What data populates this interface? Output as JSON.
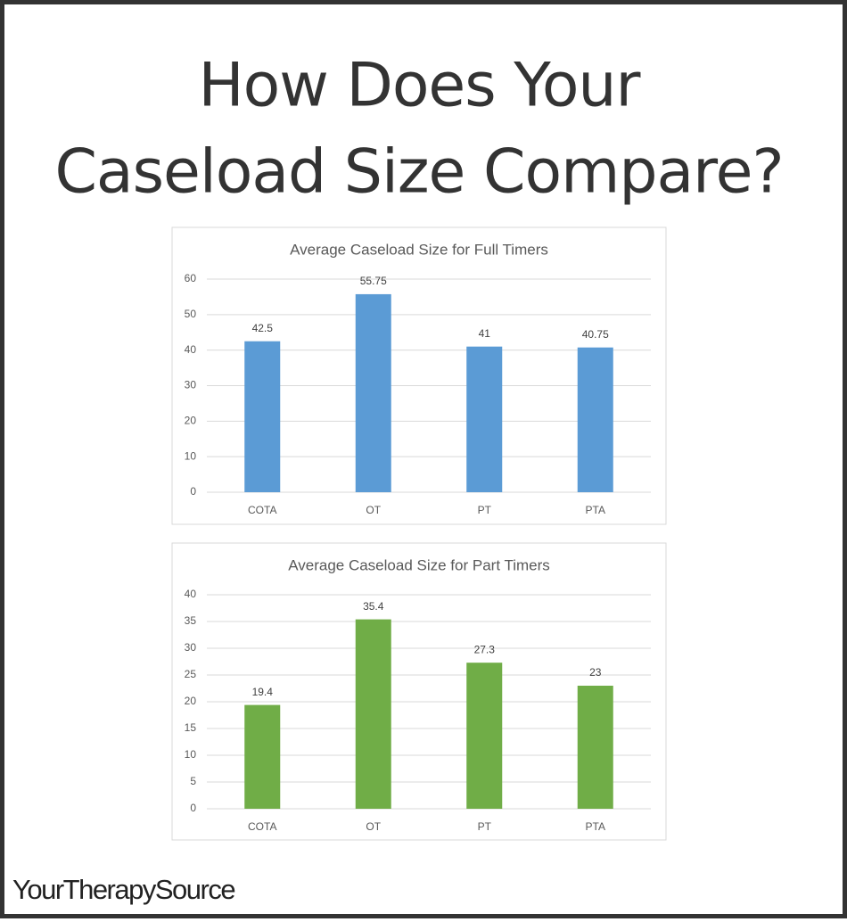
{
  "title": [
    "How Does Your",
    "Caseload Size Compare?"
  ],
  "chart_data": [
    {
      "type": "bar",
      "title": "Average Caseload Size for Full Timers",
      "categories": [
        "COTA",
        "OT",
        "PT",
        "PTA"
      ],
      "values": [
        42.5,
        55.75,
        41,
        40.75
      ],
      "color": "#5b9bd5",
      "ylim": [
        0,
        60
      ],
      "yticks": [
        0,
        10,
        20,
        30,
        40,
        50,
        60
      ],
      "grid": true
    },
    {
      "type": "bar",
      "title": "Average Caseload Size for Part Timers",
      "categories": [
        "COTA",
        "OT",
        "PT",
        "PTA"
      ],
      "values": [
        19.4,
        35.4,
        27.3,
        23
      ],
      "color": "#70ad47",
      "ylim": [
        0,
        40
      ],
      "yticks": [
        0,
        5,
        10,
        15,
        20,
        25,
        30,
        35,
        40
      ],
      "grid": true
    }
  ],
  "footer": "YourTherapySource"
}
